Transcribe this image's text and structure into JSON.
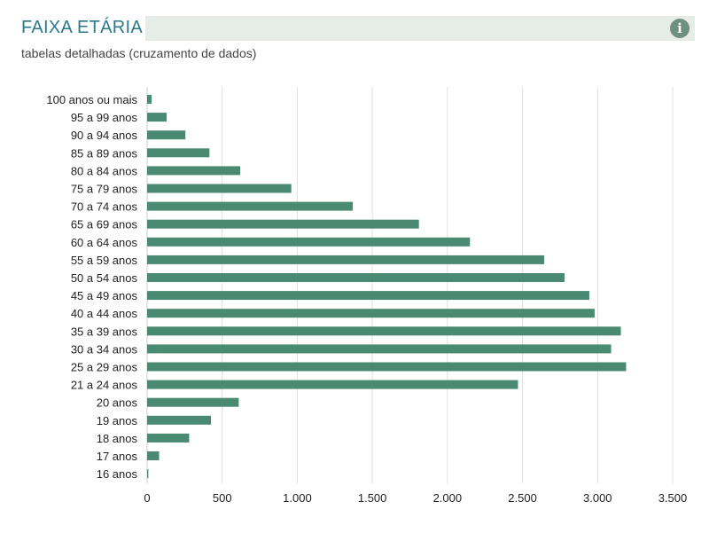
{
  "header": {
    "title": "FAIXA ETÁRIA",
    "subtitle": "tabelas detalhadas (cruzamento de dados)",
    "info_icon": "info-icon"
  },
  "colors": {
    "bar": "#4a8a72",
    "grid": "#e0e0e0",
    "title": "#2b7a8c",
    "title_bar": "#e6ece8"
  },
  "chart_data": {
    "type": "bar",
    "orientation": "horizontal",
    "title": "",
    "xlabel": "",
    "ylabel": "",
    "xlim": [
      0,
      3500
    ],
    "x_ticks": [
      0,
      500,
      1000,
      1500,
      2000,
      2500,
      3000,
      3500
    ],
    "x_tick_labels": [
      "0",
      "500",
      "1.000",
      "1.500",
      "2.000",
      "2.500",
      "3.000",
      "3.500"
    ],
    "grid": true,
    "categories": [
      "100 anos ou mais",
      "95 a 99 anos",
      "90 a 94 anos",
      "85 a 89 anos",
      "80 a 84 anos",
      "75 a 79 anos",
      "70 a 74 anos",
      "65 a 69 anos",
      "60 a 64 anos",
      "55 a 59 anos",
      "50 a 54 anos",
      "45 a 49 anos",
      "40 a 44 anos",
      "35 a 39 anos",
      "30 a 34 anos",
      "25 a 29 anos",
      "21 a 24 anos",
      "20 anos",
      "19 anos",
      "18 anos",
      "17 anos",
      "16 anos"
    ],
    "values": [
      30,
      130,
      255,
      415,
      620,
      960,
      1370,
      1810,
      2150,
      2645,
      2780,
      2945,
      2980,
      3155,
      3090,
      3190,
      2470,
      610,
      425,
      280,
      80,
      8
    ]
  }
}
